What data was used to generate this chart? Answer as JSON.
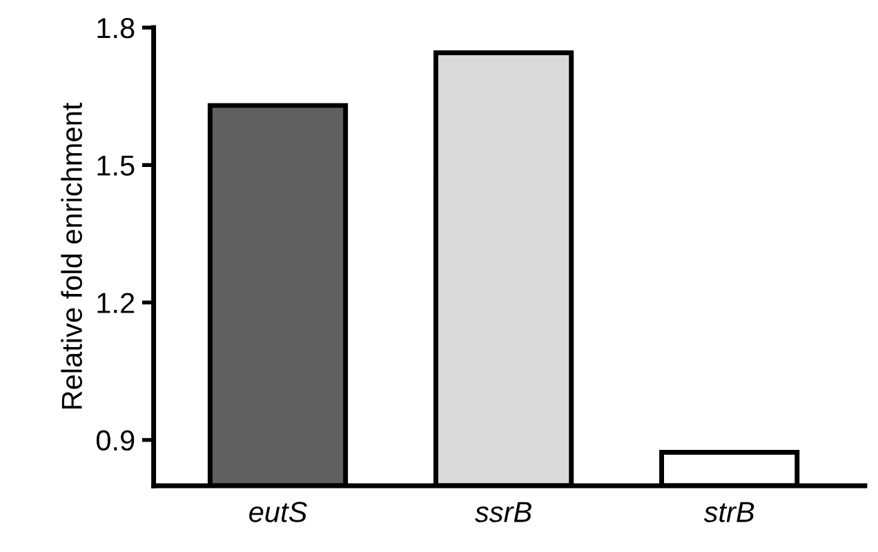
{
  "chart_data": {
    "type": "bar",
    "ylabel": "Relative fold enrichment",
    "categories": [
      "eutS",
      "ssrB",
      "strB"
    ],
    "values": [
      1.63,
      1.745,
      0.873
    ],
    "colors": [
      "#606060",
      "#d9d9d9",
      "#ffffff"
    ],
    "ylim": [
      0.8,
      1.8
    ],
    "yticks": [
      0.9,
      1.2,
      1.5,
      1.8
    ],
    "grid": false
  }
}
